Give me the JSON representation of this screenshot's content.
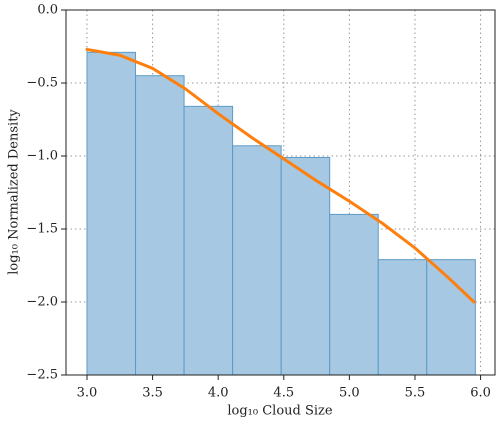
{
  "chart_data": {
    "type": "histogram",
    "xlabel": "log₁₀ Cloud Size",
    "ylabel": "log₁₀ Normalized Density",
    "bins": [
      3.0,
      3.37,
      3.74,
      4.11,
      4.48,
      4.85,
      5.22,
      5.59,
      5.96
    ],
    "values": [
      -0.29,
      -0.45,
      -0.66,
      -0.93,
      -1.01,
      -1.4,
      -1.71,
      -1.71
    ],
    "color": "#a6c8e2",
    "edgecolor": "#5b9bc8",
    "overlay": {
      "type": "line",
      "color": "#ff7f0e",
      "x": [
        3.0,
        3.25,
        3.5,
        3.75,
        4.0,
        4.25,
        4.5,
        4.75,
        5.0,
        5.25,
        5.5,
        5.75,
        5.95
      ],
      "values": [
        -0.27,
        -0.31,
        -0.4,
        -0.54,
        -0.71,
        -0.87,
        -1.02,
        -1.17,
        -1.31,
        -1.46,
        -1.63,
        -1.83,
        -2.0
      ]
    },
    "xlim": [
      2.84,
      6.11
    ],
    "ylim": [
      -2.5,
      0
    ],
    "xticks": [
      {
        "value": 3,
        "label": "3.0"
      },
      {
        "value": 3.5,
        "label": "3.5"
      },
      {
        "value": 4,
        "label": "4.0"
      },
      {
        "value": 4.5,
        "label": "4.5"
      },
      {
        "value": 5,
        "label": "5.0"
      },
      {
        "value": 5.5,
        "label": "5.5"
      },
      {
        "value": 6,
        "label": "6.0"
      }
    ],
    "yticks": [
      {
        "value": -2.5,
        "label": "−2.5"
      },
      {
        "value": -2,
        "label": "−2.0"
      },
      {
        "value": -1.5,
        "label": "−1.5"
      },
      {
        "value": -1,
        "label": "−1.0"
      },
      {
        "value": -0.5,
        "label": "−0.5"
      },
      {
        "value": 0,
        "label": "0.0"
      }
    ],
    "grid": true
  }
}
